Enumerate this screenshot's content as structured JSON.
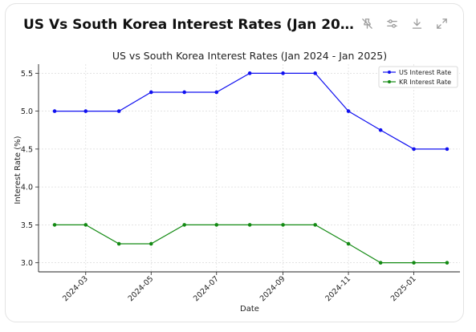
{
  "card": {
    "title": "US Vs South Korea Interest Rates (Jan 2024 - Jan 20..."
  },
  "toolbar": {
    "icons": [
      "pin-off-icon",
      "sliders-icon",
      "download-icon",
      "expand-icon"
    ]
  },
  "chart_data": {
    "type": "line",
    "title": "US vs South Korea Interest Rates (Jan 2024 - Jan 2025)",
    "xlabel": "Date",
    "ylabel": "Interest Rate (%)",
    "x": [
      "2024-02-01",
      "2024-03-01",
      "2024-04-01",
      "2024-05-01",
      "2024-06-01",
      "2024-07-01",
      "2024-08-01",
      "2024-09-01",
      "2024-10-01",
      "2024-11-01",
      "2024-12-01",
      "2025-01-01",
      "2025-02-01"
    ],
    "xticks": [
      "2024-03",
      "2024-05",
      "2024-07",
      "2024-09",
      "2024-11",
      "2025-01"
    ],
    "yticks": [
      "3.0",
      "3.5",
      "4.0",
      "4.5",
      "5.0",
      "5.5"
    ],
    "ylim": [
      2.88,
      5.62
    ],
    "xlim": [
      "2024-01-17",
      "2025-02-13"
    ],
    "grid": true,
    "legend_position": "top-right",
    "series": [
      {
        "name": "US Interest Rate",
        "color": "#1010f0",
        "values": [
          5.0,
          5.0,
          5.0,
          5.25,
          5.25,
          5.25,
          5.5,
          5.5,
          5.5,
          5.0,
          4.75,
          4.5,
          4.5
        ]
      },
      {
        "name": "KR Interest Rate",
        "color": "#138a13",
        "values": [
          3.5,
          3.5,
          3.25,
          3.25,
          3.5,
          3.5,
          3.5,
          3.5,
          3.5,
          3.25,
          3.0,
          3.0,
          3.0
        ]
      }
    ]
  }
}
